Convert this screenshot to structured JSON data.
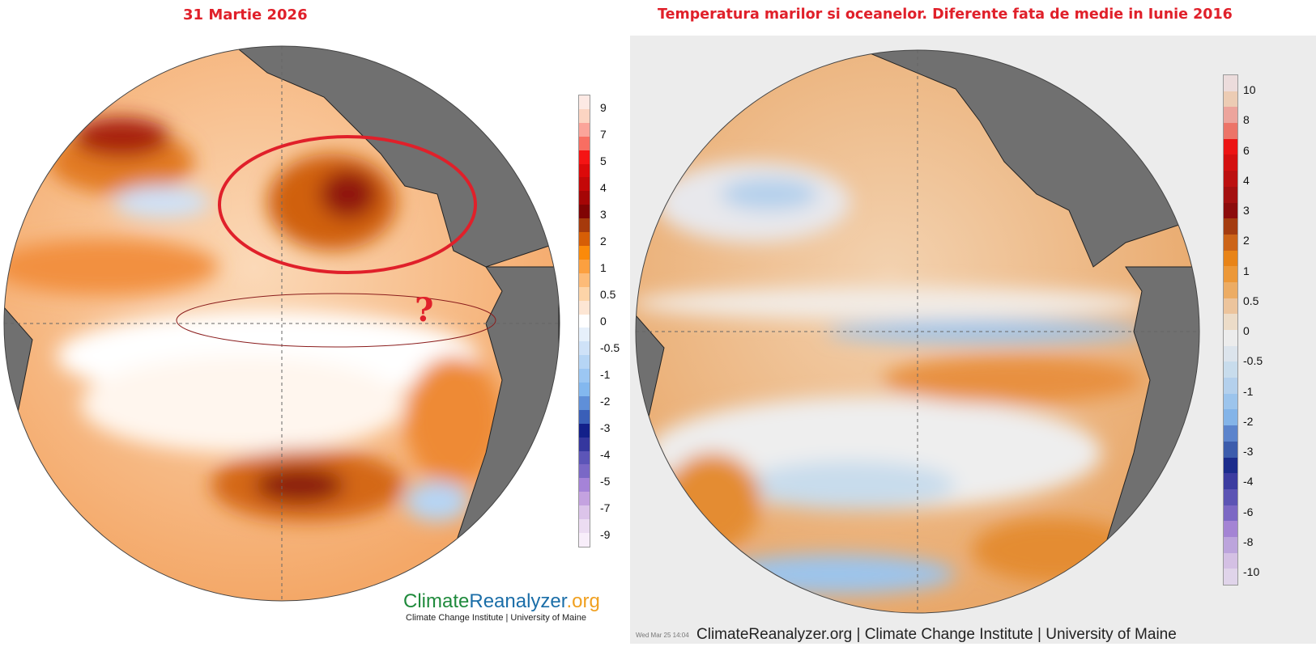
{
  "left_panel": {
    "title": "31 Martie 2026",
    "colorbar_labels": [
      "9",
      "7",
      "5",
      "4",
      "3",
      "2",
      "1",
      "0.5",
      "0",
      "-0.5",
      "-1",
      "-2",
      "-3",
      "-4",
      "-5",
      "-7",
      "-9"
    ],
    "colorbar_colors": [
      "#fde9e4",
      "#fcd4c2",
      "#fba49a",
      "#f86e62",
      "#f51414",
      "#dc0a0a",
      "#c40808",
      "#a50606",
      "#800404",
      "#a63a0c",
      "#d65e06",
      "#fb8a0a",
      "#fca040",
      "#fdbb78",
      "#fdd4a8",
      "#fde6d4",
      "#ffffff",
      "#e6f0fb",
      "#cfe2f8",
      "#b6d5f5",
      "#9cc7f3",
      "#83b8ef",
      "#5f8fd8",
      "#3a5fb8",
      "#13208a",
      "#35379e",
      "#5c55b8",
      "#7a68c6",
      "#a583d8",
      "#c4a2e0",
      "#dcc4ea",
      "#ecdcf2",
      "#f8eefa"
    ],
    "logo": {
      "part1": "Climate",
      "part2": "Reanalyzer",
      "part3": ".org"
    },
    "logo_subtitle": "Climate Change Institute | University of Maine",
    "annotation_mark": "?"
  },
  "right_panel": {
    "title": "Temperatura marilor si oceanelor. Diferente fata de medie in Iunie 2016",
    "colorbar_labels": [
      "10",
      "8",
      "6",
      "4",
      "3",
      "2",
      "1",
      "0.5",
      "0",
      "-0.5",
      "-1",
      "-2",
      "-3",
      "-4",
      "-6",
      "-8",
      "-10"
    ],
    "colorbar_colors": [
      "#ecdcdc",
      "#ecccb4",
      "#eca49c",
      "#ec7468",
      "#ec1414",
      "#d41010",
      "#bc1010",
      "#a41010",
      "#8c0c0c",
      "#a43c10",
      "#cc6418",
      "#e88418",
      "#ec9838",
      "#ecac64",
      "#ecc49c",
      "#ecdcc8",
      "#ececec",
      "#dce4ec",
      "#c8dcec",
      "#b4d0ec",
      "#9cc4ec",
      "#84b4e8",
      "#5c84cc",
      "#3c5cac",
      "#1c2c8c",
      "#3c3ca0",
      "#5c54b4",
      "#7c68c4",
      "#a484d4",
      "#bca4dc",
      "#d4c0e4",
      "#e0d4ea"
    ],
    "footer": "ClimateReanalyzer.org | Climate Change Institute | University of Maine",
    "timestamp": "Wed Mar 25 14:04"
  },
  "colors": {
    "title_red": "#e0202a",
    "land": "#707070",
    "annotation_red": "#e0202a"
  }
}
